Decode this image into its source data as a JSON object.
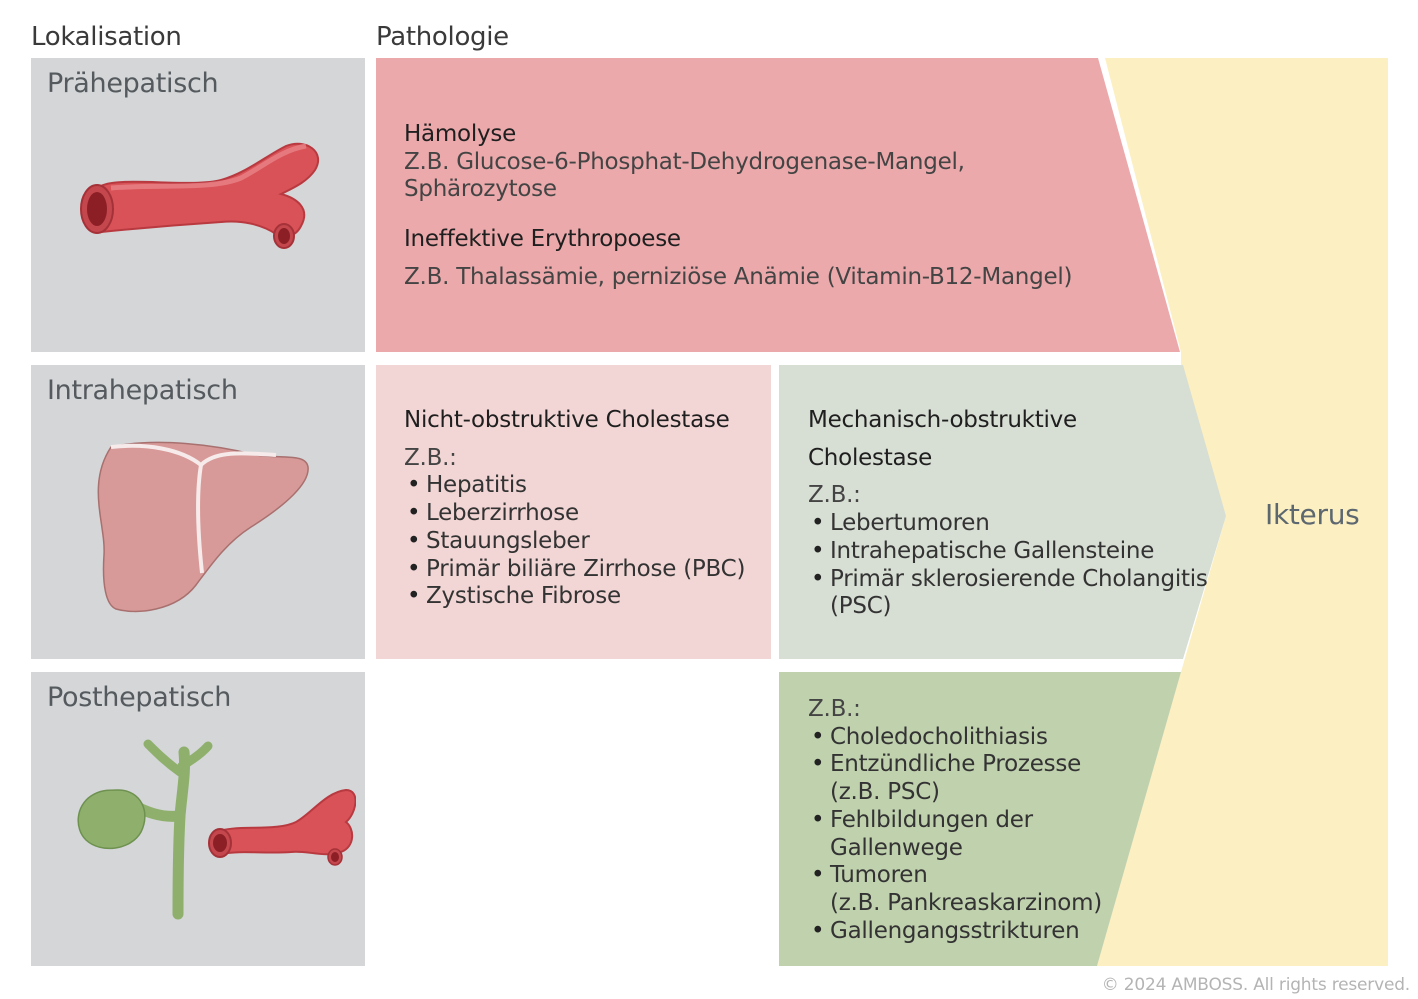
{
  "headers": {
    "location": "Lokalisation",
    "pathology": "Pathologie"
  },
  "locations": [
    {
      "label": "Prähepatisch",
      "illustration": "blood-vessel-icon"
    },
    {
      "label": "Intrahepatisch",
      "illustration": "liver-icon"
    },
    {
      "label": "Posthepatisch",
      "illustration": "gallbladder-bile-duct-icon"
    }
  ],
  "prehepatic": {
    "hemolysis": {
      "title": "Hämolyse",
      "line1": "Z.B. Glucose-6-Phosphat-Dehydrogenase-Mangel,",
      "line2": "Sphärozytose"
    },
    "ineffective": {
      "title": "Ineffektive Erythropoese",
      "line1": "Z.B. Thalassämie, perniziöse Anämie (Vitamin-B12-Mangel)"
    }
  },
  "intrahepatic": {
    "nonobstructive": {
      "title": "Nicht-obstruktive Cholestase",
      "eg": "Z.B.:",
      "items": [
        "Hepatitis",
        "Leberzirrhose",
        "Stauungsleber",
        "Primär biliäre Zirrhose (PBC)",
        "Zystische Fibrose"
      ]
    },
    "mechanical": {
      "title_line1": "Mechanisch-obstruktive",
      "title_line2": "Cholestase",
      "eg": "Z.B.:",
      "items": [
        "Lebertumoren",
        "Intrahepatische Gallensteine",
        "Primär sklerosierende Cholangitis",
        "(PSC)"
      ]
    }
  },
  "posthepatic": {
    "eg": "Z.B.:",
    "items": [
      "Choledocholithiasis",
      "Entzündliche Prozesse",
      "(z.B. PSC)",
      "Fehlbildungen der",
      "Gallenwege",
      "Tumoren",
      "(z.B. Pankreaskarzinom)",
      "Gallengangsstrikturen"
    ]
  },
  "result": {
    "label": "Ikterus"
  },
  "copyright": "© 2024 AMBOSS. All rights reserved.",
  "colors": {
    "location_box": "#d4d6d8",
    "prehepatic_fill": "#eba9ab",
    "nonobstructive_fill": "#f2d6d5",
    "mechanical_fill": "#d7ded3",
    "posthepatic_fill": "#c0d1ae",
    "ikterus_fill": "#fcefc1",
    "vessel_red": "#d85257",
    "liver_pink": "#d79a98",
    "bile_green": "#8fb06d"
  }
}
